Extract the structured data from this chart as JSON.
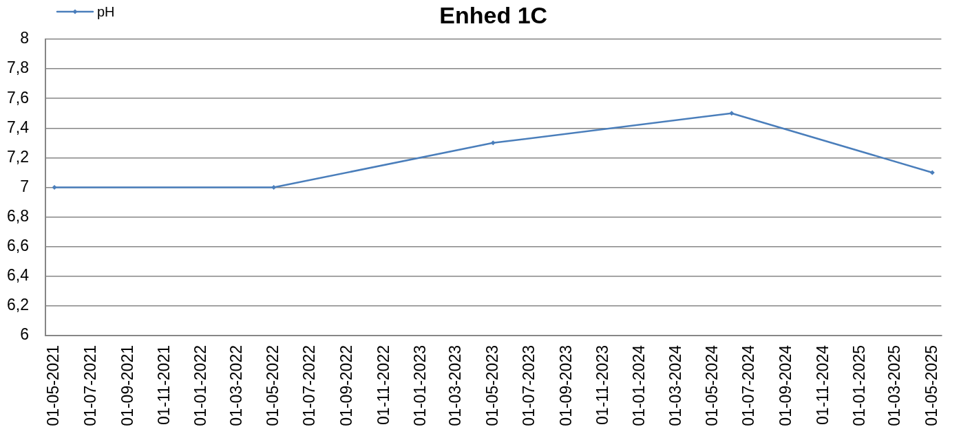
{
  "chart_data": {
    "type": "line",
    "title": "Enhed 1C",
    "x": [
      "2021-05",
      "2022-05",
      "2023-05",
      "2024-06",
      "2025-05"
    ],
    "series": [
      {
        "name": "pH",
        "color": "#4a7ebb",
        "values": [
          7,
          7,
          7.3,
          7.5,
          7.1
        ]
      }
    ],
    "xlim": [
      "2021-04-16",
      "2025-05-16"
    ],
    "xticks": [
      {
        "value": "2021-05",
        "label": "01-05-2021"
      },
      {
        "value": "2021-07",
        "label": "01-07-2021"
      },
      {
        "value": "2021-09",
        "label": "01-09-2021"
      },
      {
        "value": "2021-11",
        "label": "01-11-2021"
      },
      {
        "value": "2022-01",
        "label": "01-01-2022"
      },
      {
        "value": "2022-03",
        "label": "01-03-2022"
      },
      {
        "value": "2022-05",
        "label": "01-05-2022"
      },
      {
        "value": "2022-07",
        "label": "01-07-2022"
      },
      {
        "value": "2022-09",
        "label": "01-09-2022"
      },
      {
        "value": "2022-11",
        "label": "01-11-2022"
      },
      {
        "value": "2023-01",
        "label": "01-01-2023"
      },
      {
        "value": "2023-03",
        "label": "01-03-2023"
      },
      {
        "value": "2023-05",
        "label": "01-05-2023"
      },
      {
        "value": "2023-07",
        "label": "01-07-2023"
      },
      {
        "value": "2023-09",
        "label": "01-09-2023"
      },
      {
        "value": "2023-11",
        "label": "01-11-2023"
      },
      {
        "value": "2024-01",
        "label": "01-01-2024"
      },
      {
        "value": "2024-03",
        "label": "01-03-2024"
      },
      {
        "value": "2024-05",
        "label": "01-05-2024"
      },
      {
        "value": "2024-07",
        "label": "01-07-2024"
      },
      {
        "value": "2024-09",
        "label": "01-09-2024"
      },
      {
        "value": "2024-11",
        "label": "01-11-2024"
      },
      {
        "value": "2025-01",
        "label": "01-01-2025"
      },
      {
        "value": "2025-03",
        "label": "01-03-2025"
      },
      {
        "value": "2025-05",
        "label": "01-05-2025"
      }
    ],
    "ylim": [
      6,
      8
    ],
    "yticks": [
      6,
      {
        "value": 6.2,
        "label": "6,2"
      },
      {
        "value": 6.4,
        "label": "6,4"
      },
      {
        "value": 6.6,
        "label": "6,6"
      },
      {
        "value": 6.8,
        "label": "6,8"
      },
      7,
      {
        "value": 7.2,
        "label": "7,2"
      },
      {
        "value": 7.4,
        "label": "7,4"
      },
      {
        "value": 7.6,
        "label": "7,6"
      },
      {
        "value": 7.8,
        "label": "7,8"
      },
      8
    ],
    "grid": "y",
    "legend": "top left",
    "marker": "diamond"
  }
}
